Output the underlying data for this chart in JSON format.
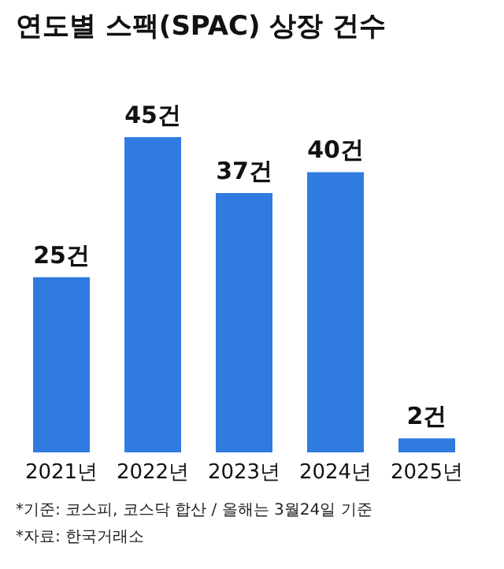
{
  "chart_data": {
    "type": "bar",
    "title": "연도별 스팩(SPAC) 상장 건수",
    "categories": [
      "2021년",
      "2022년",
      "2023년",
      "2024년",
      "2025년"
    ],
    "values": [
      25,
      45,
      37,
      40,
      2
    ],
    "value_labels": [
      "25건",
      "45건",
      "37건",
      "40건",
      "2건"
    ],
    "color": "#2f7be0",
    "annotations": [
      "*기준: 코스피, 코스닥 합산 / 올해는 3월24일 기준",
      "*자료: 한국거래소"
    ]
  }
}
